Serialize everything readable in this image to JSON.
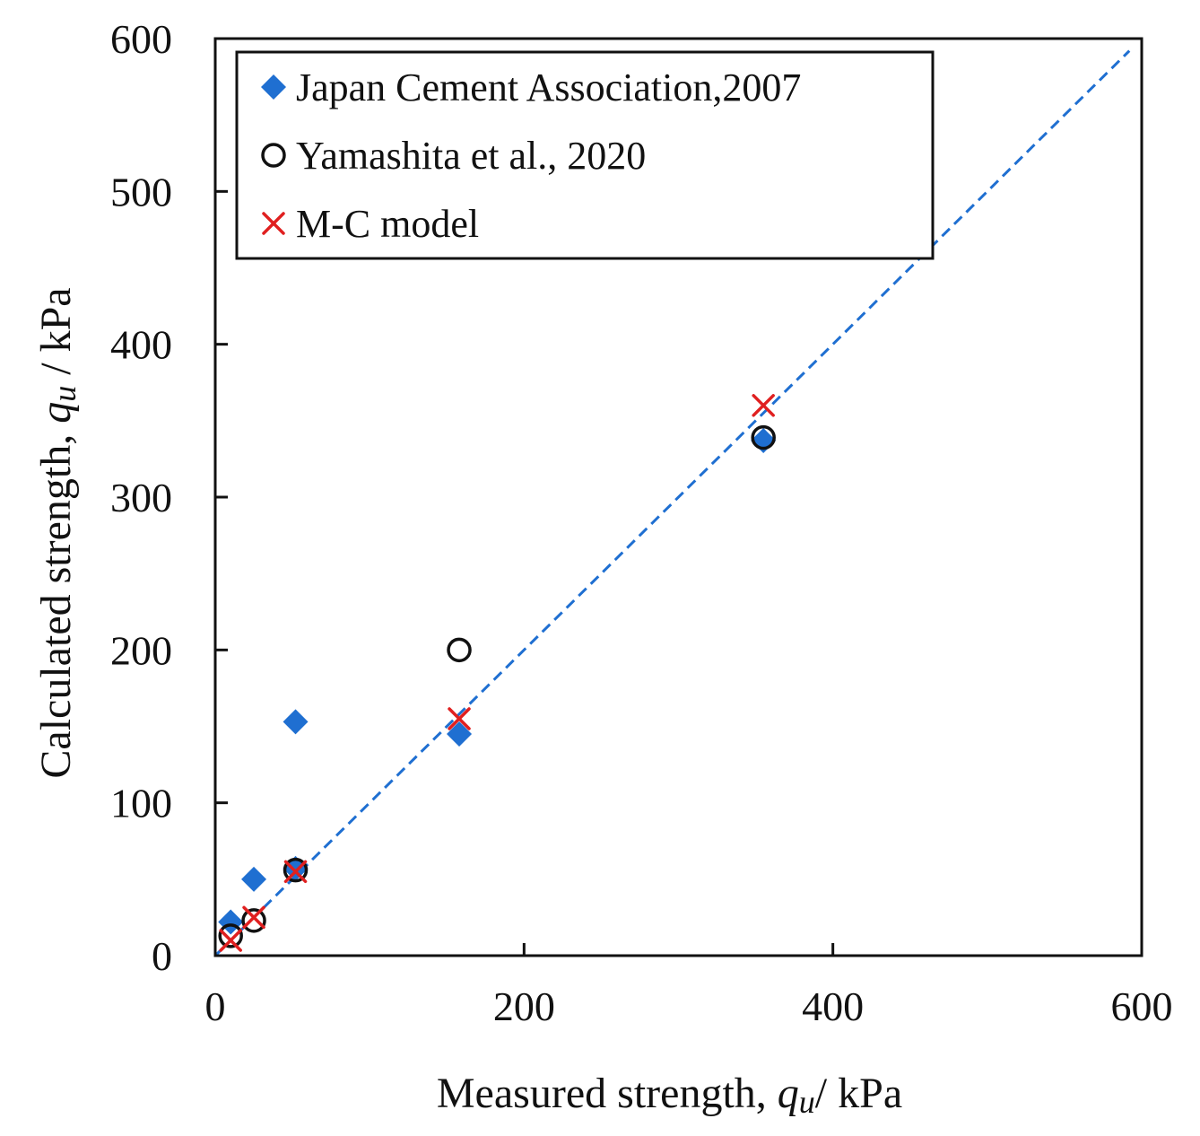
{
  "chart_data": {
    "type": "scatter",
    "title": "",
    "xlabel": {
      "prefix": "Measured strength, ",
      "symbol": "q",
      "subscript": "u",
      "suffix": "/ kPa"
    },
    "ylabel": {
      "prefix": "Calculated strength, ",
      "symbol": "q",
      "subscript": "u",
      "suffix": " / kPa"
    },
    "xlim": [
      0,
      600
    ],
    "ylim": [
      0,
      600
    ],
    "xticks": [
      0,
      200,
      400,
      600
    ],
    "yticks": [
      0,
      100,
      200,
      300,
      400,
      500,
      600
    ],
    "grid": false,
    "legend_position": "top-left",
    "reference_line": {
      "name": "1:1 line",
      "points": [
        [
          0,
          0
        ],
        [
          592,
          592
        ]
      ],
      "style": "dashed",
      "color": "#1f6fd1"
    },
    "series": [
      {
        "name": "Japan Cement Association,2007",
        "marker": "diamond",
        "color": "#1f6fd1",
        "points": [
          [
            10,
            22
          ],
          [
            25,
            50
          ],
          [
            52,
            153
          ],
          [
            52,
            57
          ],
          [
            158,
            145
          ],
          [
            355,
            337
          ]
        ]
      },
      {
        "name": "Yamashita et al., 2020",
        "marker": "open-circle",
        "color": "#111111",
        "points": [
          [
            10,
            13
          ],
          [
            25,
            23
          ],
          [
            52,
            56
          ],
          [
            158,
            200
          ],
          [
            355,
            339
          ]
        ]
      },
      {
        "name": "M-C model",
        "marker": "x",
        "color": "#e02020",
        "points": [
          [
            10,
            10
          ],
          [
            25,
            25
          ],
          [
            52,
            55
          ],
          [
            158,
            155
          ],
          [
            355,
            360
          ]
        ]
      }
    ]
  }
}
